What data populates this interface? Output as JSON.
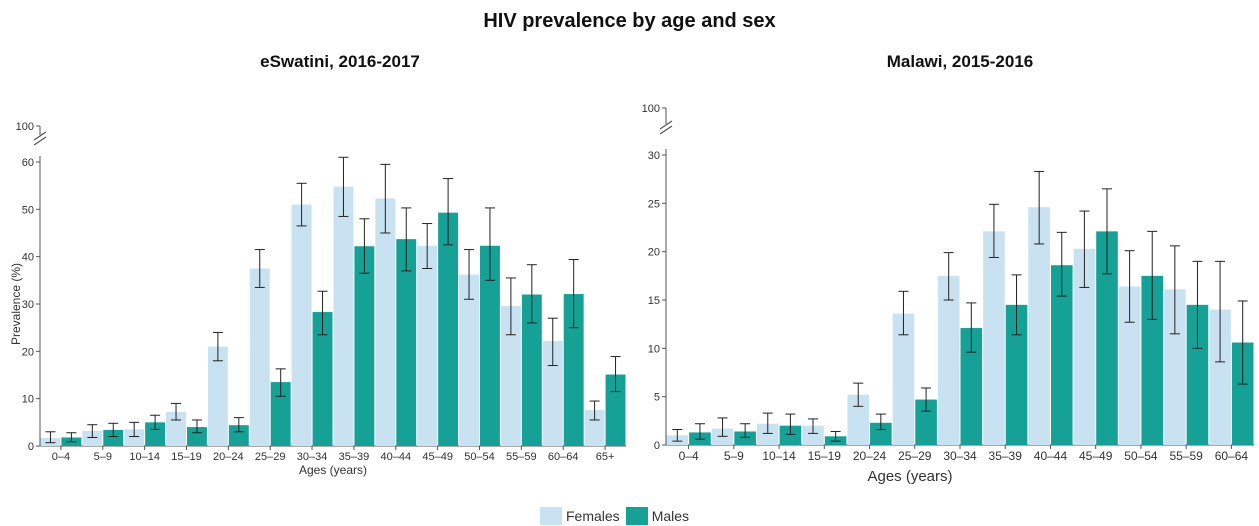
{
  "title": "HIV prevalence by age and sex",
  "legend": {
    "females": {
      "label": "Females",
      "color": "#c9e2f1"
    },
    "males": {
      "label": "Males",
      "color": "#16a196"
    }
  },
  "chart_data": [
    {
      "type": "bar",
      "title": "eSwatini, 2016-2017",
      "xlabel": "Ages (years)",
      "ylabel": "Prevalence (%)",
      "ylim": [
        0,
        60
      ],
      "yticks": [
        0,
        10,
        20,
        30,
        40,
        50,
        60
      ],
      "axis_break_label": "100",
      "categories": [
        "0–4",
        "5–9",
        "10–14",
        "15–19",
        "20–24",
        "25–29",
        "30–34",
        "35–39",
        "40–44",
        "45–49",
        "50–54",
        "55–59",
        "60–64",
        "65+"
      ],
      "series": [
        {
          "name": "Females",
          "values": [
            1.7,
            3.2,
            3.5,
            7.2,
            21.0,
            37.5,
            51.0,
            54.8,
            52.3,
            42.3,
            36.2,
            29.6,
            22.2,
            7.6
          ],
          "ci_low": [
            0.7,
            1.8,
            2.0,
            5.5,
            18.0,
            33.5,
            46.5,
            48.5,
            45.0,
            37.5,
            31.0,
            23.5,
            17.0,
            5.5
          ],
          "ci_high": [
            3.0,
            4.5,
            5.0,
            9.0,
            24.0,
            41.5,
            55.5,
            61.0,
            59.5,
            47.0,
            41.5,
            35.5,
            27.0,
            9.5
          ]
        },
        {
          "name": "Males",
          "values": [
            1.8,
            3.4,
            5.0,
            4.0,
            4.4,
            13.5,
            28.3,
            42.2,
            43.7,
            49.3,
            42.3,
            32.0,
            32.1,
            15.1
          ],
          "ci_low": [
            0.9,
            2.0,
            3.5,
            2.8,
            3.0,
            10.5,
            23.5,
            36.5,
            37.0,
            42.5,
            35.0,
            26.0,
            25.0,
            11.5
          ],
          "ci_high": [
            2.8,
            4.8,
            6.5,
            5.5,
            6.0,
            16.3,
            32.7,
            48.0,
            50.3,
            56.5,
            50.3,
            38.3,
            39.4,
            18.9
          ]
        }
      ]
    },
    {
      "type": "bar",
      "title": "Malawi, 2015-2016",
      "xlabel": "Ages (years)",
      "ylabel": "",
      "ylim": [
        0,
        30
      ],
      "yticks": [
        0,
        5,
        10,
        15,
        20,
        25,
        30
      ],
      "axis_break_label": "100",
      "categories": [
        "0–4",
        "5–9",
        "10–14",
        "15–19",
        "20–24",
        "25–29",
        "30–34",
        "35–39",
        "40–44",
        "45–49",
        "50–54",
        "55–59",
        "60–64"
      ],
      "series": [
        {
          "name": "Females",
          "values": [
            1.0,
            1.7,
            2.2,
            2.0,
            5.2,
            13.6,
            17.5,
            22.1,
            24.6,
            20.3,
            16.4,
            16.1,
            14.0
          ],
          "ci_low": [
            0.4,
            0.9,
            1.2,
            1.2,
            4.0,
            11.4,
            15.0,
            19.4,
            20.8,
            16.3,
            12.7,
            11.5,
            8.6
          ],
          "ci_high": [
            1.6,
            2.8,
            3.3,
            2.7,
            6.4,
            15.9,
            19.9,
            24.9,
            28.3,
            24.2,
            20.1,
            20.6,
            19.0
          ]
        },
        {
          "name": "Males",
          "values": [
            1.3,
            1.4,
            2.0,
            0.9,
            2.3,
            4.7,
            12.1,
            14.5,
            18.6,
            22.1,
            17.5,
            14.5,
            10.6
          ],
          "ci_low": [
            0.6,
            0.8,
            1.1,
            0.4,
            1.6,
            3.5,
            9.6,
            11.4,
            15.4,
            17.7,
            13.0,
            10.0,
            6.3
          ],
          "ci_high": [
            2.2,
            2.2,
            3.2,
            1.4,
            3.2,
            5.9,
            14.7,
            17.6,
            22.0,
            26.5,
            22.1,
            19.0,
            14.9
          ]
        }
      ]
    }
  ]
}
